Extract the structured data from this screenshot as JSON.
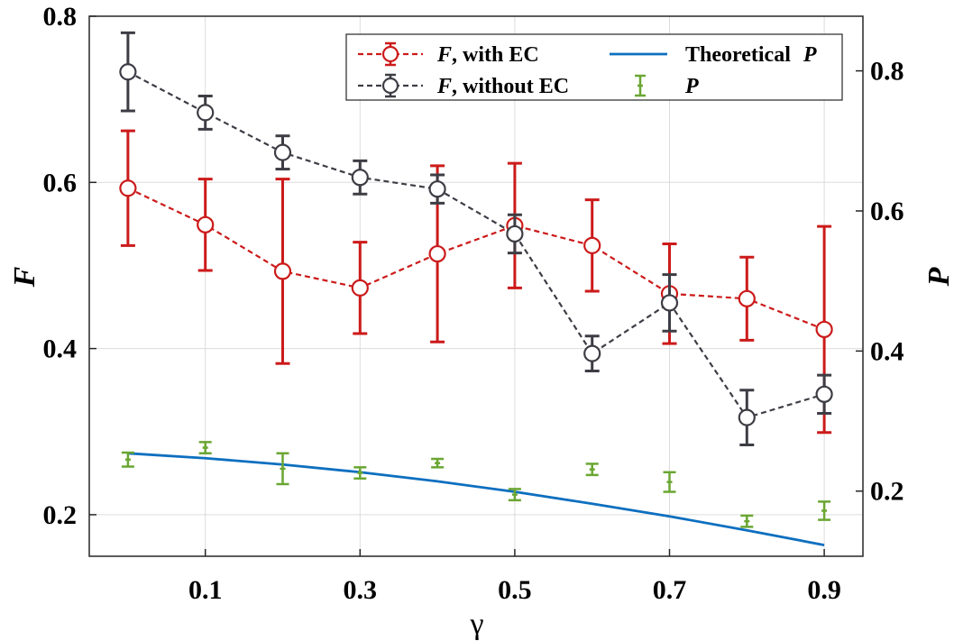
{
  "chart_data": {
    "type": "line",
    "xlabel": "γ",
    "ylabel_left": "F",
    "ylabel_right": "P",
    "x_ticks": [
      "0.1",
      "0.3",
      "0.5",
      "0.7",
      "0.9"
    ],
    "y_left_ticks": [
      "0.2",
      "0.4",
      "0.6",
      "0.8"
    ],
    "y_right_ticks": [
      "0.2",
      "0.4",
      "0.6",
      "0.8"
    ],
    "xlim": [
      -0.05,
      0.95
    ],
    "ylim_left": [
      0.15,
      0.8
    ],
    "ylim_right": [
      0.107,
      0.878
    ],
    "grid": true,
    "legend_position": "top-right",
    "series": [
      {
        "name": "F, with EC",
        "legend_name": ", with EC",
        "legend_italic": "F",
        "axis": "left",
        "color": "#cc1a1a",
        "style": "dashed-circle",
        "x": [
          0,
          0.1,
          0.2,
          0.3,
          0.4,
          0.5,
          0.6,
          0.7,
          0.8,
          0.9
        ],
        "y": [
          0.593,
          0.549,
          0.493,
          0.473,
          0.514,
          0.548,
          0.524,
          0.466,
          0.46,
          0.423
        ],
        "err": [
          0.069,
          0.055,
          0.111,
          0.055,
          0.106,
          0.075,
          0.055,
          0.06,
          0.05,
          0.124
        ]
      },
      {
        "name": "F, without EC",
        "legend_name": ", without EC",
        "legend_italic": "F",
        "axis": "left",
        "color": "#3d3d45",
        "style": "dashed-circle",
        "x": [
          0,
          0.1,
          0.2,
          0.3,
          0.4,
          0.5,
          0.6,
          0.7,
          0.8,
          0.9
        ],
        "y": [
          0.733,
          0.684,
          0.636,
          0.606,
          0.592,
          0.538,
          0.394,
          0.455,
          0.317,
          0.345
        ],
        "err": [
          0.047,
          0.02,
          0.02,
          0.02,
          0.017,
          0.023,
          0.021,
          0.034,
          0.033,
          0.023
        ]
      },
      {
        "name": "Theoretical P",
        "legend_name": "Theoretical ",
        "legend_italic": "P",
        "axis": "right",
        "color": "#0d6fbf",
        "style": "solid",
        "x": [
          0,
          0.1,
          0.2,
          0.3,
          0.4,
          0.5,
          0.6,
          0.7,
          0.8,
          0.9
        ],
        "y": [
          0.254,
          0.247,
          0.238,
          0.227,
          0.214,
          0.199,
          0.182,
          0.164,
          0.144,
          0.123
        ]
      },
      {
        "name": "P",
        "legend_name": "",
        "legend_italic": "P",
        "axis": "right",
        "color": "#6aa632",
        "style": "errorbar-only",
        "x": [
          0,
          0.1,
          0.2,
          0.3,
          0.4,
          0.5,
          0.6,
          0.7,
          0.8,
          0.9
        ],
        "y": [
          0.245,
          0.262,
          0.232,
          0.226,
          0.24,
          0.195,
          0.231,
          0.213,
          0.157,
          0.172
        ],
        "err": [
          0.01,
          0.008,
          0.022,
          0.008,
          0.006,
          0.008,
          0.008,
          0.014,
          0.008,
          0.013
        ]
      }
    ]
  }
}
